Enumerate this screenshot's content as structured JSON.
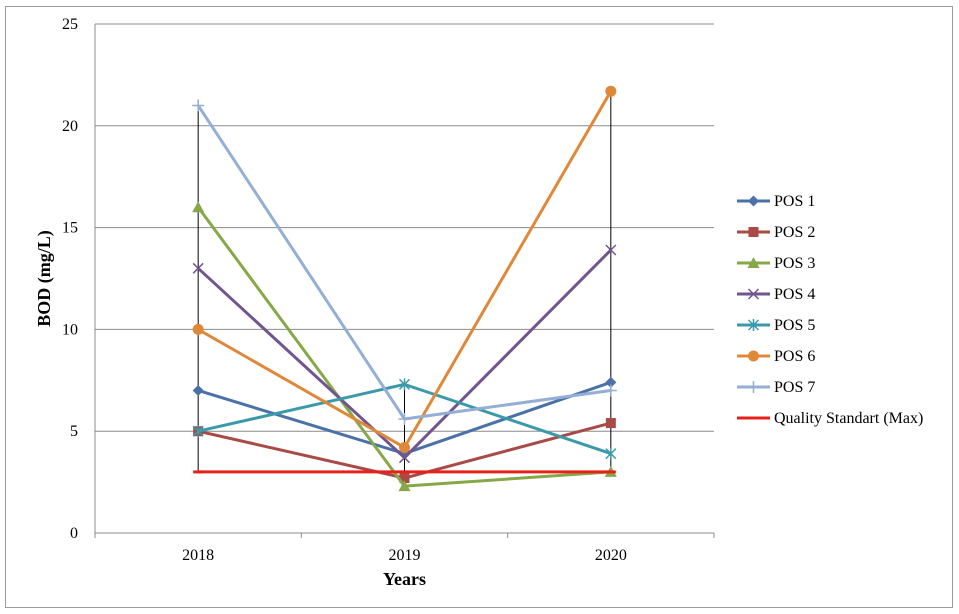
{
  "chart_data": {
    "type": "line",
    "title": "",
    "xlabel": "Years",
    "ylabel": "BOD (mg/L)",
    "categories": [
      "2018",
      "2019",
      "2020"
    ],
    "ylim": [
      0,
      25
    ],
    "yticks": [
      0,
      5,
      10,
      15,
      20,
      25
    ],
    "grid": "horizontal",
    "legend_position": "right",
    "series": [
      {
        "name": "POS 1",
        "values": [
          7.0,
          3.9,
          7.4
        ],
        "color": "#4a72a8",
        "marker": "diamond"
      },
      {
        "name": "POS 2",
        "values": [
          5.0,
          2.7,
          5.4
        ],
        "color": "#a84a45",
        "marker": "square"
      },
      {
        "name": "POS 3",
        "values": [
          16.0,
          2.3,
          3.0
        ],
        "color": "#86a848",
        "marker": "triangle"
      },
      {
        "name": "POS 4",
        "values": [
          13.0,
          3.7,
          13.9
        ],
        "color": "#70558f",
        "marker": "x"
      },
      {
        "name": "POS 5",
        "values": [
          5.0,
          7.3,
          3.9
        ],
        "color": "#3b9aaa",
        "marker": "asterisk"
      },
      {
        "name": "POS 6",
        "values": [
          10.0,
          4.2,
          21.7
        ],
        "color": "#e0883a",
        "marker": "circle"
      },
      {
        "name": "POS 7",
        "values": [
          21.0,
          5.6,
          7.0
        ],
        "color": "#94aed6",
        "marker": "plus"
      },
      {
        "name": "Quality Standart (Max)",
        "values": [
          3.0,
          3.0,
          3.0
        ],
        "color": "#e8201a",
        "marker": "dash"
      }
    ],
    "high_low_lines": true
  }
}
